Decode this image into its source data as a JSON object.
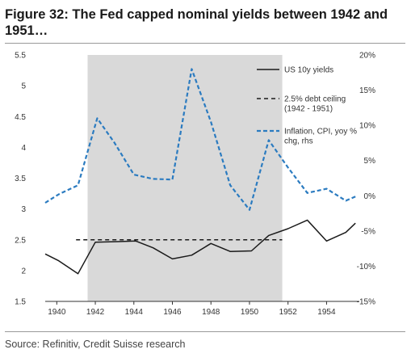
{
  "title": "Figure 32: The Fed capped nominal yields between 1942 and 1951…",
  "source": "Source: Refinitiv, Credit Suisse research",
  "chart_data": {
    "type": "line",
    "shaded_period": [
      1941.6,
      1951.7
    ],
    "x_ticks": [
      "1940",
      "1942",
      "1944",
      "1946",
      "1948",
      "1950",
      "1952",
      "1954"
    ],
    "left_axis": {
      "ylim": [
        1.5,
        5.5
      ],
      "ticks": [
        "1.5",
        "2",
        "2.5",
        "3",
        "3.5",
        "4",
        "4.5",
        "5",
        "5.5"
      ]
    },
    "right_axis": {
      "ylim": [
        -15,
        20
      ],
      "ticks": [
        "-15%",
        "-10%",
        "-5%",
        "0%",
        "5%",
        "10%",
        "15%",
        "20%"
      ]
    },
    "legend": {
      "placement": "top-right",
      "entries": [
        {
          "label": "US 10y yields"
        },
        {
          "label": "2.5% debt ceiling",
          "label2": "(1942 - 1951)"
        },
        {
          "label": "Inflation, CPI, yoy %",
          "label2": "chg, rhs"
        }
      ]
    },
    "series": [
      {
        "name": "US 10y yields",
        "axis": "left",
        "color": "#1a1a1a",
        "style": "solid",
        "x": [
          1939.4,
          1940.1,
          1941.1,
          1942.0,
          1943.2,
          1944.1,
          1945.0,
          1946.0,
          1947.0,
          1948.0,
          1949.0,
          1950.1,
          1951.0,
          1952.0,
          1953.0,
          1954.0,
          1955.0,
          1955.5
        ],
        "y": [
          2.27,
          2.16,
          1.95,
          2.46,
          2.47,
          2.48,
          2.37,
          2.19,
          2.25,
          2.44,
          2.31,
          2.32,
          2.57,
          2.68,
          2.82,
          2.48,
          2.62,
          2.77
        ]
      },
      {
        "name": "2.5% debt ceiling",
        "axis": "left",
        "color": "#1a1a1a",
        "style": "dashed",
        "x": [
          1941.0,
          1951.7
        ],
        "y": [
          2.5,
          2.5
        ]
      },
      {
        "name": "Inflation, CPI, yoy % chg, rhs",
        "axis": "right",
        "color": "#2b7bc0",
        "style": "dashed",
        "x": [
          1939.4,
          1940.1,
          1941.1,
          1942.1,
          1943.0,
          1944.0,
          1945.0,
          1946.0,
          1947.0,
          1948.0,
          1949.0,
          1950.0,
          1951.0,
          1952.0,
          1953.0,
          1954.0,
          1955.0,
          1955.5
        ],
        "y": [
          -1.0,
          0.2,
          1.5,
          11.0,
          7.5,
          3.0,
          2.4,
          2.3,
          18.0,
          10.5,
          1.5,
          -2.0,
          7.9,
          4.0,
          0.4,
          1.0,
          -0.7,
          -0.1
        ]
      }
    ]
  }
}
